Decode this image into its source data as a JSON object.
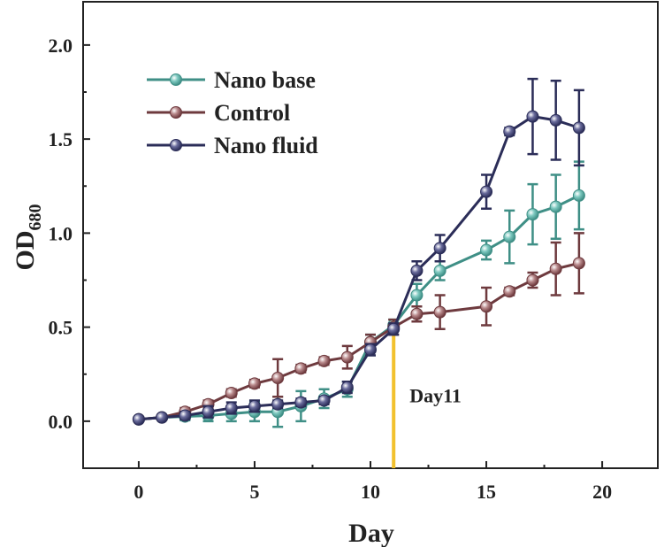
{
  "chart_data": {
    "type": "line",
    "xlabel": "Day",
    "ylabel_main": "OD",
    "ylabel_sub": "680",
    "xlim": [
      -2.4,
      22.4
    ],
    "ylim": [
      -0.25,
      2.23
    ],
    "xticks": [
      0,
      5,
      10,
      15,
      20
    ],
    "xtick_labels": [
      "0",
      "5",
      "10",
      "15",
      "20"
    ],
    "yticks": [
      0.0,
      0.5,
      1.0,
      1.5,
      2.0
    ],
    "ytick_labels": [
      "0.0",
      "0.5",
      "1.0",
      "1.5",
      "2.0"
    ],
    "grid": false,
    "legend_position": "top-left",
    "annotation": {
      "label": "Day11",
      "x": 11,
      "color": "#f2c12e"
    },
    "series": [
      {
        "name": "Nano base",
        "color": "#3f8f86",
        "marker_color": "#7ec9c0",
        "x": [
          0,
          1,
          2,
          3,
          4,
          5,
          6,
          7,
          8,
          9,
          10,
          11,
          12,
          13,
          15,
          16,
          17,
          18,
          19
        ],
        "y": [
          0.01,
          0.02,
          0.025,
          0.03,
          0.04,
          0.05,
          0.05,
          0.08,
          0.12,
          0.17,
          0.42,
          0.51,
          0.67,
          0.8,
          0.91,
          0.98,
          1.1,
          1.14,
          1.2
        ],
        "err": [
          0.0,
          0.0,
          0.02,
          0.03,
          0.04,
          0.05,
          0.08,
          0.08,
          0.05,
          0.04,
          0.04,
          0.03,
          0.06,
          0.05,
          0.05,
          0.14,
          0.16,
          0.17,
          0.18
        ]
      },
      {
        "name": "Control",
        "color": "#6e3a3e",
        "marker_color": "#b98a8c",
        "x": [
          0,
          1,
          2,
          3,
          4,
          5,
          6,
          7,
          8,
          9,
          10,
          11,
          12,
          13,
          15,
          16,
          17,
          18,
          19
        ],
        "y": [
          0.01,
          0.02,
          0.05,
          0.09,
          0.15,
          0.2,
          0.23,
          0.28,
          0.32,
          0.34,
          0.42,
          0.5,
          0.57,
          0.58,
          0.61,
          0.69,
          0.75,
          0.81,
          0.84
        ],
        "err": [
          0.0,
          0.0,
          0.02,
          0.02,
          0.02,
          0.02,
          0.1,
          0.02,
          0.02,
          0.06,
          0.04,
          0.04,
          0.04,
          0.09,
          0.1,
          0.02,
          0.04,
          0.14,
          0.16
        ]
      },
      {
        "name": "Nano fluid",
        "color": "#2b2d58",
        "marker_color": "#6a6c9c",
        "x": [
          0,
          1,
          2,
          3,
          4,
          5,
          6,
          7,
          8,
          9,
          10,
          11,
          12,
          13,
          15,
          16,
          17,
          18,
          19
        ],
        "y": [
          0.01,
          0.02,
          0.03,
          0.05,
          0.07,
          0.08,
          0.09,
          0.1,
          0.11,
          0.18,
          0.38,
          0.49,
          0.8,
          0.92,
          1.22,
          1.54,
          1.62,
          1.6,
          1.56
        ],
        "err": [
          0.0,
          0.0,
          0.02,
          0.03,
          0.03,
          0.03,
          0.02,
          0.02,
          0.02,
          0.03,
          0.03,
          0.03,
          0.05,
          0.07,
          0.09,
          0.02,
          0.2,
          0.21,
          0.2
        ]
      }
    ]
  }
}
